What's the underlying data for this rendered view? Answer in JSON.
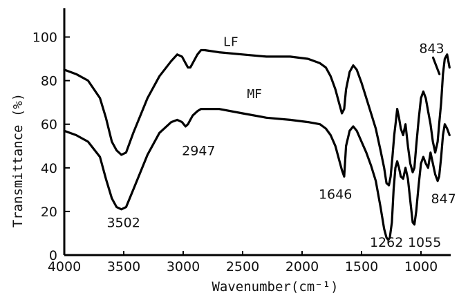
{
  "chart_data": {
    "type": "line",
    "xlabel": "Wavenumber(cm⁻¹)",
    "ylabel": "Transmittance (%)",
    "xlim": [
      4000,
      750
    ],
    "ylim": [
      0,
      110
    ],
    "x_ticks": [
      4000,
      3500,
      3000,
      2500,
      2000,
      1500,
      1000
    ],
    "y_ticks": [
      0,
      20,
      40,
      60,
      80,
      100
    ],
    "grid": false,
    "series": [
      {
        "name": "LF",
        "x": [
          4000,
          3900,
          3800,
          3700,
          3650,
          3600,
          3560,
          3520,
          3480,
          3420,
          3300,
          3200,
          3100,
          3050,
          3010,
          2980,
          2960,
          2940,
          2920,
          2880,
          2850,
          2820,
          2700,
          2500,
          2300,
          2100,
          1950,
          1850,
          1800,
          1760,
          1720,
          1690,
          1665,
          1646,
          1630,
          1600,
          1570,
          1540,
          1500,
          1460,
          1420,
          1380,
          1340,
          1310,
          1290,
          1270,
          1255,
          1240,
          1225,
          1210,
          1200,
          1185,
          1170,
          1150,
          1130,
          1110,
          1090,
          1070,
          1055,
          1040,
          1020,
          1000,
          980,
          960,
          940,
          920,
          900,
          880,
          860,
          847,
          830,
          815,
          800,
          780,
          760
        ],
        "y": [
          85,
          83,
          80,
          72,
          63,
          52,
          48,
          46,
          47,
          56,
          72,
          82,
          89,
          92,
          91,
          88,
          86,
          86,
          88,
          92,
          94,
          94,
          93,
          92,
          91,
          91,
          90,
          88,
          86,
          82,
          76,
          70,
          65,
          67,
          76,
          84,
          87,
          85,
          79,
          72,
          65,
          58,
          48,
          40,
          33,
          32,
          36,
          45,
          55,
          62,
          67,
          63,
          58,
          55,
          60,
          50,
          42,
          38,
          40,
          50,
          62,
          72,
          75,
          72,
          66,
          60,
          52,
          47,
          52,
          60,
          70,
          83,
          90,
          92,
          86
        ],
        "label_x": 2600,
        "label_y": 94
      },
      {
        "name": "MF",
        "x": [
          4000,
          3900,
          3800,
          3700,
          3650,
          3600,
          3560,
          3520,
          3480,
          3420,
          3300,
          3200,
          3100,
          3050,
          3010,
          2980,
          2960,
          2940,
          2920,
          2880,
          2850,
          2800,
          2700,
          2500,
          2300,
          2100,
          1950,
          1850,
          1800,
          1760,
          1720,
          1690,
          1665,
          1646,
          1630,
          1600,
          1570,
          1540,
          1500,
          1460,
          1420,
          1380,
          1340,
          1310,
          1290,
          1275,
          1262,
          1245,
          1230,
          1215,
          1200,
          1185,
          1170,
          1150,
          1130,
          1110,
          1090,
          1070,
          1055,
          1040,
          1020,
          1000,
          980,
          960,
          940,
          920,
          900,
          880,
          860,
          847,
          830,
          815,
          800,
          780,
          760
        ],
        "y": [
          57,
          55,
          52,
          45,
          35,
          26,
          22,
          21,
          22,
          30,
          46,
          56,
          61,
          62,
          61,
          59,
          60,
          62,
          64,
          66,
          67,
          67,
          67,
          65,
          63,
          62,
          61,
          60,
          58,
          55,
          50,
          44,
          39,
          36,
          50,
          57,
          59,
          57,
          52,
          47,
          41,
          34,
          22,
          12,
          8,
          7,
          8,
          15,
          30,
          40,
          43,
          40,
          36,
          35,
          40,
          35,
          25,
          15,
          14,
          20,
          32,
          42,
          45,
          42,
          40,
          47,
          42,
          37,
          34,
          36,
          45,
          55,
          60,
          58,
          55
        ],
        "label_x": 2400,
        "label_y": 70
      }
    ],
    "annotations": [
      {
        "text": "3502",
        "x": 3502,
        "y": 15
      },
      {
        "text": "2947",
        "x": 2870,
        "y": 48
      },
      {
        "text": "1646",
        "x": 1720,
        "y": 28
      },
      {
        "text": "1262",
        "x": 1290,
        "y": 6
      },
      {
        "text": "1055",
        "x": 970,
        "y": 6
      },
      {
        "text": "847",
        "x": 810,
        "y": 26
      },
      {
        "text": "843",
        "x": 910,
        "y": 95
      }
    ]
  }
}
